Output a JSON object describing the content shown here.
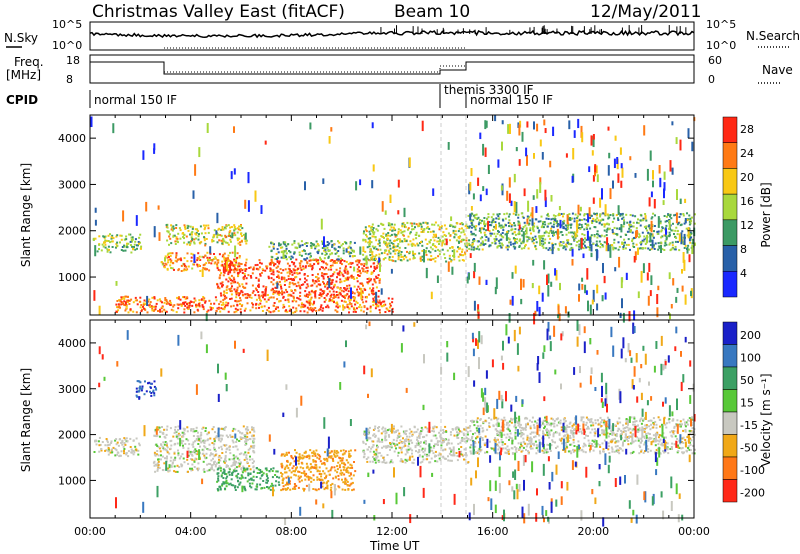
{
  "header": {
    "title": "Christmas Valley East (fitACF)",
    "beam": "Beam 10",
    "date": "12/May/2011"
  },
  "status_panels": {
    "nsky_label": "N.Sky",
    "nsky_ticks": [
      "10^5",
      "10^0"
    ],
    "nsearch_label": "N.Search",
    "nsearch_ticks": [
      "10^5",
      "10^0"
    ],
    "freq_label_1": "Freq.",
    "freq_label_2": "[MHz]",
    "freq_ticks": [
      "18",
      "8"
    ],
    "nave_label": "Nave",
    "nave_ticks": [
      "60",
      "0"
    ],
    "cpid_label": "CPID",
    "cpid_segments": [
      {
        "label": "normal 150 IF",
        "start_hour": 0
      },
      {
        "label": "themis 3300 IF",
        "start_hour": 14.1
      },
      {
        "label": "normal 150 IF",
        "start_hour": 15.0
      }
    ]
  },
  "chart_data": [
    {
      "type": "heatmap",
      "name": "power",
      "xlabel": "",
      "ylabel": "Slant Range [km]",
      "x_ticks": [
        "00:00",
        "04:00",
        "08:00",
        "12:00",
        "16:00",
        "20:00",
        "00:00"
      ],
      "xlim_hours": [
        0,
        24
      ],
      "y_ticks": [
        1000,
        2000,
        3000,
        4000
      ],
      "ylim": [
        180,
        4500
      ],
      "colorbar": {
        "label": "Power [dB]",
        "ticks": [
          4,
          8,
          12,
          16,
          20,
          24,
          28
        ],
        "range": [
          0,
          30
        ],
        "colors": [
          "#1a28ff",
          "#2860a8",
          "#3c9a64",
          "#a8d83c",
          "#f8c814",
          "#ff7a14",
          "#ff2814"
        ]
      },
      "regions": [
        {
          "hours": [
            0.1,
            2.0
          ],
          "range_km": [
            1550,
            1950
          ],
          "db": 14
        },
        {
          "hours": [
            3.0,
            6.2
          ],
          "range_km": [
            1700,
            2150
          ],
          "db": 17
        },
        {
          "hours": [
            2.8,
            6.0
          ],
          "range_km": [
            1150,
            1550
          ],
          "db": 22
        },
        {
          "hours": [
            5.0,
            11.5
          ],
          "range_km": [
            600,
            1400
          ],
          "db": 26
        },
        {
          "hours": [
            7.0,
            10.5
          ],
          "range_km": [
            1400,
            1800
          ],
          "db": 12
        },
        {
          "hours": [
            1.0,
            12.0
          ],
          "range_km": [
            250,
            600
          ],
          "db": 24
        },
        {
          "hours": [
            10.8,
            15.0
          ],
          "range_km": [
            1350,
            2200
          ],
          "db": 16
        },
        {
          "hours": [
            15.0,
            24.0
          ],
          "range_km": [
            1600,
            2400
          ],
          "db": 12
        }
      ]
    },
    {
      "type": "heatmap",
      "name": "velocity",
      "xlabel": "Time UT",
      "ylabel": "Slant Range [km]",
      "x_ticks": [
        "00:00",
        "04:00",
        "08:00",
        "12:00",
        "16:00",
        "20:00",
        "00:00"
      ],
      "xlim_hours": [
        0,
        24
      ],
      "y_ticks": [
        1000,
        2000,
        3000,
        4000
      ],
      "ylim": [
        180,
        4500
      ],
      "colorbar": {
        "label": "Velocity [m s⁻¹]",
        "ticks": [
          200,
          100,
          50,
          15,
          -15,
          -50,
          -100,
          -200
        ],
        "colors": [
          "#1a20c8",
          "#3878c0",
          "#3ca064",
          "#58c838",
          "#c8c8c0",
          "#f0a818",
          "#ff7818",
          "#ff2818"
        ]
      },
      "regions": [
        {
          "hours": [
            0.1,
            2.0
          ],
          "range_km": [
            1550,
            1950
          ],
          "vel": 0
        },
        {
          "hours": [
            2.5,
            6.5
          ],
          "range_km": [
            1200,
            2200
          ],
          "vel": 0
        },
        {
          "hours": [
            5.0,
            7.5
          ],
          "range_km": [
            800,
            1300
          ],
          "vel": 60
        },
        {
          "hours": [
            7.5,
            10.5
          ],
          "range_km": [
            800,
            1700
          ],
          "vel": -40
        },
        {
          "hours": [
            10.8,
            15.0
          ],
          "range_km": [
            1400,
            2200
          ],
          "vel": 0
        },
        {
          "hours": [
            15.0,
            24.0
          ],
          "range_km": [
            1600,
            2400
          ],
          "vel": 0
        },
        {
          "hours": [
            1.8,
            2.6
          ],
          "range_km": [
            2800,
            3200
          ],
          "vel": 200
        }
      ]
    }
  ]
}
